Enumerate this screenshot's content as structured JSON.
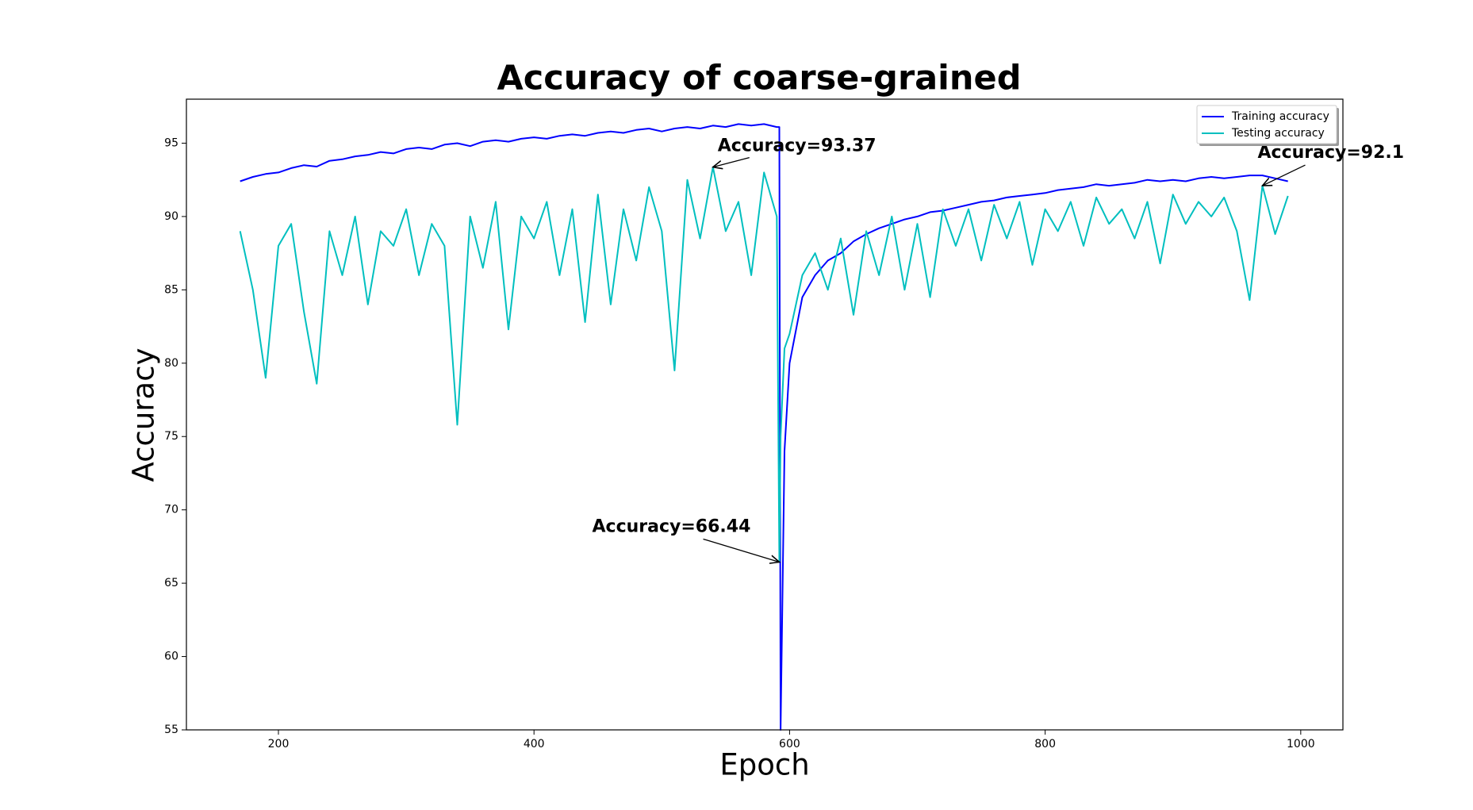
{
  "chart_data": {
    "type": "line",
    "title": "Accuracy of coarse-grained",
    "x_label": "Epoch",
    "y_label": "Accuracy",
    "x": [
      170,
      180,
      190,
      200,
      210,
      220,
      230,
      240,
      250,
      260,
      270,
      280,
      290,
      300,
      310,
      320,
      330,
      340,
      350,
      360,
      370,
      380,
      390,
      400,
      410,
      420,
      430,
      440,
      450,
      460,
      470,
      480,
      490,
      500,
      510,
      520,
      530,
      540,
      550,
      560,
      570,
      580,
      590,
      592,
      593,
      596,
      600,
      610,
      620,
      630,
      640,
      650,
      660,
      670,
      680,
      690,
      700,
      710,
      720,
      730,
      740,
      750,
      760,
      770,
      780,
      790,
      800,
      810,
      820,
      830,
      840,
      850,
      860,
      870,
      880,
      890,
      900,
      910,
      920,
      930,
      940,
      950,
      960,
      970,
      980,
      990
    ],
    "series": [
      {
        "name": "Training accuracy",
        "color": "#0000ff",
        "values": [
          92.4,
          92.7,
          92.9,
          93.0,
          93.3,
          93.5,
          93.4,
          93.8,
          93.9,
          94.1,
          94.2,
          94.4,
          94.3,
          94.6,
          94.7,
          94.6,
          94.9,
          95.0,
          94.8,
          95.1,
          95.2,
          95.1,
          95.3,
          95.4,
          95.3,
          95.5,
          95.6,
          95.5,
          95.7,
          95.8,
          95.7,
          95.9,
          96.0,
          95.8,
          96.0,
          96.1,
          96.0,
          96.2,
          96.1,
          96.3,
          96.2,
          96.3,
          96.1,
          96.1,
          55,
          74,
          80,
          84.5,
          86,
          87,
          87.5,
          88.3,
          88.8,
          89.2,
          89.5,
          89.8,
          90,
          90.3,
          90.4,
          90.6,
          90.8,
          91,
          91.1,
          91.3,
          91.4,
          91.5,
          91.6,
          91.8,
          91.9,
          92,
          92.2,
          92.1,
          92.2,
          92.3,
          92.5,
          92.4,
          92.5,
          92.4,
          92.6,
          92.7,
          92.6,
          92.7,
          92.8,
          92.8,
          92.6,
          92.4
        ]
      },
      {
        "name": "Testing accuracy",
        "color": "#00bfbf",
        "values": [
          89,
          85,
          79,
          88,
          89.5,
          83.5,
          78.6,
          89,
          86,
          90,
          84,
          89,
          88,
          90.5,
          86,
          89.5,
          88,
          75.8,
          90,
          86.5,
          91,
          82.3,
          90,
          88.5,
          91,
          86,
          90.5,
          82.8,
          91.5,
          84,
          90.5,
          87,
          92,
          89,
          79.5,
          92.5,
          88.5,
          93.37,
          89,
          91,
          86,
          93,
          90,
          66.44,
          75,
          81,
          82,
          86,
          87.5,
          85,
          88.5,
          83.3,
          89,
          86,
          90,
          85,
          89.5,
          84.5,
          90.5,
          88,
          90.5,
          87,
          90.8,
          88.5,
          91,
          86.7,
          90.5,
          89,
          91,
          88,
          91.3,
          89.5,
          90.5,
          88.5,
          91,
          86.8,
          91.5,
          89.5,
          91,
          90,
          91.3,
          89,
          84.3,
          92.1,
          88.8,
          91.4
        ]
      }
    ],
    "annotations": [
      {
        "text": "Accuracy=93.37",
        "x": 540,
        "y": 93.37
      },
      {
        "text": "Accuracy=66.44",
        "x": 592,
        "y": 66.44
      },
      {
        "text": "Accuracy=92.1",
        "x": 970,
        "y": 92.1
      }
    ],
    "xlim": [
      128,
      1033
    ],
    "ylim": [
      55,
      98
    ],
    "xticks": [
      200,
      400,
      600,
      800,
      1000
    ],
    "yticks": [
      55,
      60,
      65,
      70,
      75,
      80,
      85,
      90,
      95
    ],
    "legend": "upper right",
    "grid": false
  }
}
